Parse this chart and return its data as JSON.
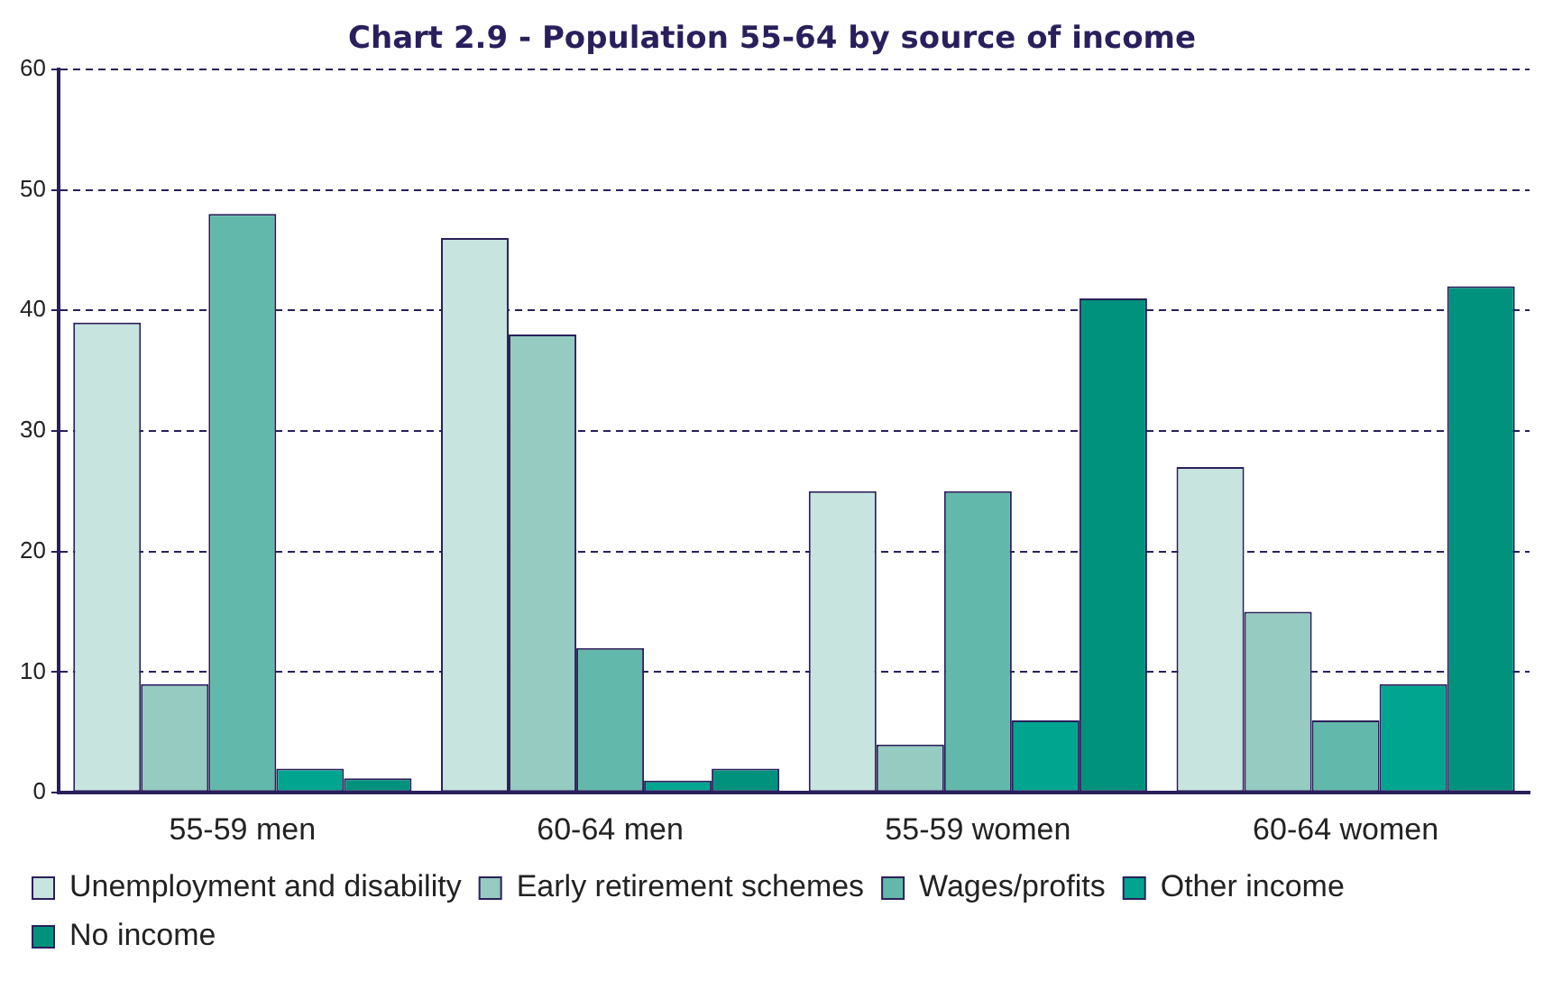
{
  "chart_data": {
    "type": "bar",
    "title": "Chart 2.9 - Population 55-64 by source of income",
    "categories": [
      "55-59 men",
      "60-64 men",
      "55-59 women",
      "60-64 women"
    ],
    "series": [
      {
        "name": "Unemployment and disability",
        "color": "#c8e4df",
        "values": [
          39,
          46,
          25,
          27
        ]
      },
      {
        "name": "Early retirement schemes",
        "color": "#95cbc1",
        "values": [
          9,
          38,
          4,
          15
        ]
      },
      {
        "name": "Wages/profits",
        "color": "#62b8aa",
        "values": [
          48,
          12,
          25,
          6
        ]
      },
      {
        "name": "Other income",
        "color": "#00a590",
        "values": [
          2,
          1,
          6,
          9
        ]
      },
      {
        "name": "No income",
        "color": "#00927c",
        "values": [
          1.2,
          2,
          41,
          42
        ]
      }
    ],
    "ylim": [
      0,
      60
    ],
    "yticks": [
      0,
      10,
      20,
      30,
      40,
      50,
      60
    ],
    "grid": "y",
    "legend": "bottom"
  }
}
